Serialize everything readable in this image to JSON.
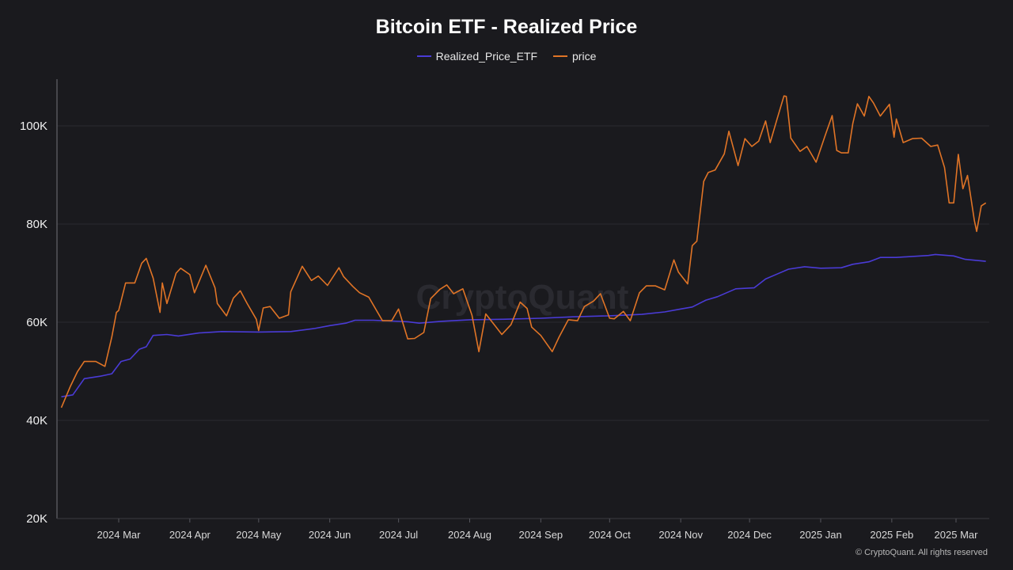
{
  "title": "Bitcoin ETF - Realized Price",
  "credit": "© CryptoQuant. All rights reserved",
  "watermark": "CryptoQuant",
  "chart_data": {
    "type": "line",
    "title": "Bitcoin ETF - Realized Price",
    "xlabel": "",
    "ylabel": "",
    "ylim": [
      20000,
      110000
    ],
    "xlim": [
      "2024-02-01",
      "2025-03-15"
    ],
    "grid": true,
    "legend_position": "top",
    "y_ticks": [
      {
        "v": 20000,
        "label": "20K"
      },
      {
        "v": 40000,
        "label": "40K"
      },
      {
        "v": 60000,
        "label": "60K"
      },
      {
        "v": 80000,
        "label": "80K"
      },
      {
        "v": 100000,
        "label": "100K"
      }
    ],
    "x_ticks": [
      {
        "date": "2024-03-01",
        "label": "2024 Mar"
      },
      {
        "date": "2024-04-01",
        "label": "2024 Apr"
      },
      {
        "date": "2024-05-01",
        "label": "2024 May"
      },
      {
        "date": "2024-06-01",
        "label": "2024 Jun"
      },
      {
        "date": "2024-07-01",
        "label": "2024 Jul"
      },
      {
        "date": "2024-08-01",
        "label": "2024 Aug"
      },
      {
        "date": "2024-09-01",
        "label": "2024 Sep"
      },
      {
        "date": "2024-10-01",
        "label": "2024 Oct"
      },
      {
        "date": "2024-11-01",
        "label": "2024 Nov"
      },
      {
        "date": "2024-12-01",
        "label": "2024 Dec"
      },
      {
        "date": "2025-01-01",
        "label": "2025 Jan"
      },
      {
        "date": "2025-02-01",
        "label": "2025 Feb"
      },
      {
        "date": "2025-03-01",
        "label": "2025 Mar"
      }
    ],
    "series": [
      {
        "name": "Realized_Price_ETF",
        "color": "#4a3bd6",
        "points": [
          [
            "2024-02-05",
            44800
          ],
          [
            "2024-02-10",
            45200
          ],
          [
            "2024-02-15",
            48500
          ],
          [
            "2024-02-22",
            49000
          ],
          [
            "2024-02-27",
            49500
          ],
          [
            "2024-03-02",
            52000
          ],
          [
            "2024-03-06",
            52500
          ],
          [
            "2024-03-10",
            54500
          ],
          [
            "2024-03-13",
            55000
          ],
          [
            "2024-03-16",
            57300
          ],
          [
            "2024-03-22",
            57500
          ],
          [
            "2024-03-27",
            57200
          ],
          [
            "2024-04-05",
            57800
          ],
          [
            "2024-04-15",
            58100
          ],
          [
            "2024-05-01",
            58000
          ],
          [
            "2024-05-15",
            58100
          ],
          [
            "2024-05-25",
            58700
          ],
          [
            "2024-06-01",
            59300
          ],
          [
            "2024-06-08",
            59800
          ],
          [
            "2024-06-12",
            60400
          ],
          [
            "2024-06-20",
            60400
          ],
          [
            "2024-07-05",
            60100
          ],
          [
            "2024-07-10",
            59800
          ],
          [
            "2024-07-20",
            60200
          ],
          [
            "2024-08-01",
            60500
          ],
          [
            "2024-08-15",
            60600
          ],
          [
            "2024-09-01",
            60800
          ],
          [
            "2024-09-15",
            61100
          ],
          [
            "2024-10-01",
            61300
          ],
          [
            "2024-10-15",
            61600
          ],
          [
            "2024-10-25",
            62100
          ],
          [
            "2024-11-01",
            62700
          ],
          [
            "2024-11-06",
            63100
          ],
          [
            "2024-11-12",
            64500
          ],
          [
            "2024-11-17",
            65200
          ],
          [
            "2024-11-25",
            66800
          ],
          [
            "2024-12-03",
            67000
          ],
          [
            "2024-12-08",
            68800
          ],
          [
            "2024-12-13",
            69800
          ],
          [
            "2024-12-18",
            70800
          ],
          [
            "2024-12-25",
            71300
          ],
          [
            "2025-01-01",
            71000
          ],
          [
            "2025-01-10",
            71100
          ],
          [
            "2025-01-15",
            71800
          ],
          [
            "2025-01-22",
            72300
          ],
          [
            "2025-01-27",
            73200
          ],
          [
            "2025-02-03",
            73200
          ],
          [
            "2025-02-10",
            73400
          ],
          [
            "2025-02-17",
            73600
          ],
          [
            "2025-02-20",
            73800
          ],
          [
            "2025-02-28",
            73500
          ],
          [
            "2025-03-05",
            72800
          ],
          [
            "2025-03-14",
            72400
          ]
        ]
      },
      {
        "name": "price",
        "color": "#e07426",
        "points": [
          [
            "2024-02-05",
            42600
          ],
          [
            "2024-02-09",
            47000
          ],
          [
            "2024-02-12",
            49900
          ],
          [
            "2024-02-15",
            52000
          ],
          [
            "2024-02-20",
            52000
          ],
          [
            "2024-02-24",
            51000
          ],
          [
            "2024-02-27",
            57000
          ],
          [
            "2024-02-29",
            62000
          ],
          [
            "2024-03-01",
            62400
          ],
          [
            "2024-03-04",
            68000
          ],
          [
            "2024-03-08",
            68000
          ],
          [
            "2024-03-11",
            72000
          ],
          [
            "2024-03-13",
            73000
          ],
          [
            "2024-03-16",
            69000
          ],
          [
            "2024-03-19",
            62000
          ],
          [
            "2024-03-20",
            68000
          ],
          [
            "2024-03-22",
            63800
          ],
          [
            "2024-03-26",
            70000
          ],
          [
            "2024-03-28",
            71000
          ],
          [
            "2024-04-01",
            69700
          ],
          [
            "2024-04-03",
            66000
          ],
          [
            "2024-04-08",
            71600
          ],
          [
            "2024-04-12",
            67000
          ],
          [
            "2024-04-13",
            63800
          ],
          [
            "2024-04-17",
            61300
          ],
          [
            "2024-04-20",
            64900
          ],
          [
            "2024-04-23",
            66400
          ],
          [
            "2024-04-26",
            63800
          ],
          [
            "2024-04-30",
            60600
          ],
          [
            "2024-05-01",
            58300
          ],
          [
            "2024-05-03",
            62900
          ],
          [
            "2024-05-06",
            63200
          ],
          [
            "2024-05-10",
            60800
          ],
          [
            "2024-05-14",
            61500
          ],
          [
            "2024-05-15",
            66200
          ],
          [
            "2024-05-20",
            71400
          ],
          [
            "2024-05-24",
            68500
          ],
          [
            "2024-05-27",
            69400
          ],
          [
            "2024-05-31",
            67500
          ],
          [
            "2024-06-05",
            71100
          ],
          [
            "2024-06-07",
            69300
          ],
          [
            "2024-06-11",
            67300
          ],
          [
            "2024-06-14",
            66000
          ],
          [
            "2024-06-18",
            65100
          ],
          [
            "2024-06-24",
            60300
          ],
          [
            "2024-06-28",
            60300
          ],
          [
            "2024-07-01",
            62700
          ],
          [
            "2024-07-05",
            56600
          ],
          [
            "2024-07-08",
            56700
          ],
          [
            "2024-07-12",
            57900
          ],
          [
            "2024-07-15",
            64800
          ],
          [
            "2024-07-19",
            66700
          ],
          [
            "2024-07-22",
            67600
          ],
          [
            "2024-07-25",
            65800
          ],
          [
            "2024-07-29",
            66800
          ],
          [
            "2024-08-02",
            61400
          ],
          [
            "2024-08-05",
            54000
          ],
          [
            "2024-08-08",
            61700
          ],
          [
            "2024-08-12",
            59300
          ],
          [
            "2024-08-15",
            57500
          ],
          [
            "2024-08-19",
            59500
          ],
          [
            "2024-08-23",
            64100
          ],
          [
            "2024-08-26",
            62800
          ],
          [
            "2024-08-28",
            59000
          ],
          [
            "2024-09-01",
            57300
          ],
          [
            "2024-09-06",
            54000
          ],
          [
            "2024-09-09",
            57000
          ],
          [
            "2024-09-13",
            60500
          ],
          [
            "2024-09-17",
            60300
          ],
          [
            "2024-09-20",
            63200
          ],
          [
            "2024-09-24",
            64300
          ],
          [
            "2024-09-27",
            65800
          ],
          [
            "2024-10-01",
            60800
          ],
          [
            "2024-10-03",
            60700
          ],
          [
            "2024-10-07",
            62200
          ],
          [
            "2024-10-10",
            60300
          ],
          [
            "2024-10-14",
            66000
          ],
          [
            "2024-10-17",
            67400
          ],
          [
            "2024-10-21",
            67400
          ],
          [
            "2024-10-25",
            66600
          ],
          [
            "2024-10-29",
            72700
          ],
          [
            "2024-10-31",
            70200
          ],
          [
            "2024-11-04",
            67800
          ],
          [
            "2024-11-06",
            75600
          ],
          [
            "2024-11-08",
            76500
          ],
          [
            "2024-11-11",
            88700
          ],
          [
            "2024-11-13",
            90500
          ],
          [
            "2024-11-16",
            91000
          ],
          [
            "2024-11-20",
            94300
          ],
          [
            "2024-11-22",
            98900
          ],
          [
            "2024-11-26",
            91900
          ],
          [
            "2024-11-29",
            97400
          ],
          [
            "2024-12-02",
            95800
          ],
          [
            "2024-12-05",
            96900
          ],
          [
            "2024-12-08",
            101000
          ],
          [
            "2024-12-10",
            96600
          ],
          [
            "2024-12-13",
            101400
          ],
          [
            "2024-12-16",
            106100
          ],
          [
            "2024-12-17",
            106000
          ],
          [
            "2024-12-19",
            97500
          ],
          [
            "2024-12-23",
            94800
          ],
          [
            "2024-12-26",
            95800
          ],
          [
            "2024-12-30",
            92600
          ],
          [
            "2025-01-03",
            98100
          ],
          [
            "2025-01-06",
            102100
          ],
          [
            "2025-01-08",
            95000
          ],
          [
            "2025-01-10",
            94500
          ],
          [
            "2025-01-13",
            94500
          ],
          [
            "2025-01-15",
            100500
          ],
          [
            "2025-01-17",
            104500
          ],
          [
            "2025-01-20",
            102000
          ],
          [
            "2025-01-22",
            106000
          ],
          [
            "2025-01-24",
            104700
          ],
          [
            "2025-01-27",
            102000
          ],
          [
            "2025-01-31",
            104400
          ],
          [
            "2025-02-02",
            97700
          ],
          [
            "2025-02-03",
            101400
          ],
          [
            "2025-02-06",
            96600
          ],
          [
            "2025-02-10",
            97400
          ],
          [
            "2025-02-14",
            97500
          ],
          [
            "2025-02-18",
            95800
          ],
          [
            "2025-02-21",
            96100
          ],
          [
            "2025-02-24",
            91500
          ],
          [
            "2025-02-26",
            84300
          ],
          [
            "2025-02-28",
            84300
          ],
          [
            "2025-03-02",
            94200
          ],
          [
            "2025-03-04",
            87200
          ],
          [
            "2025-03-06",
            89900
          ],
          [
            "2025-03-09",
            80700
          ],
          [
            "2025-03-10",
            78500
          ],
          [
            "2025-03-12",
            83700
          ],
          [
            "2025-03-14",
            84300
          ]
        ]
      }
    ]
  }
}
